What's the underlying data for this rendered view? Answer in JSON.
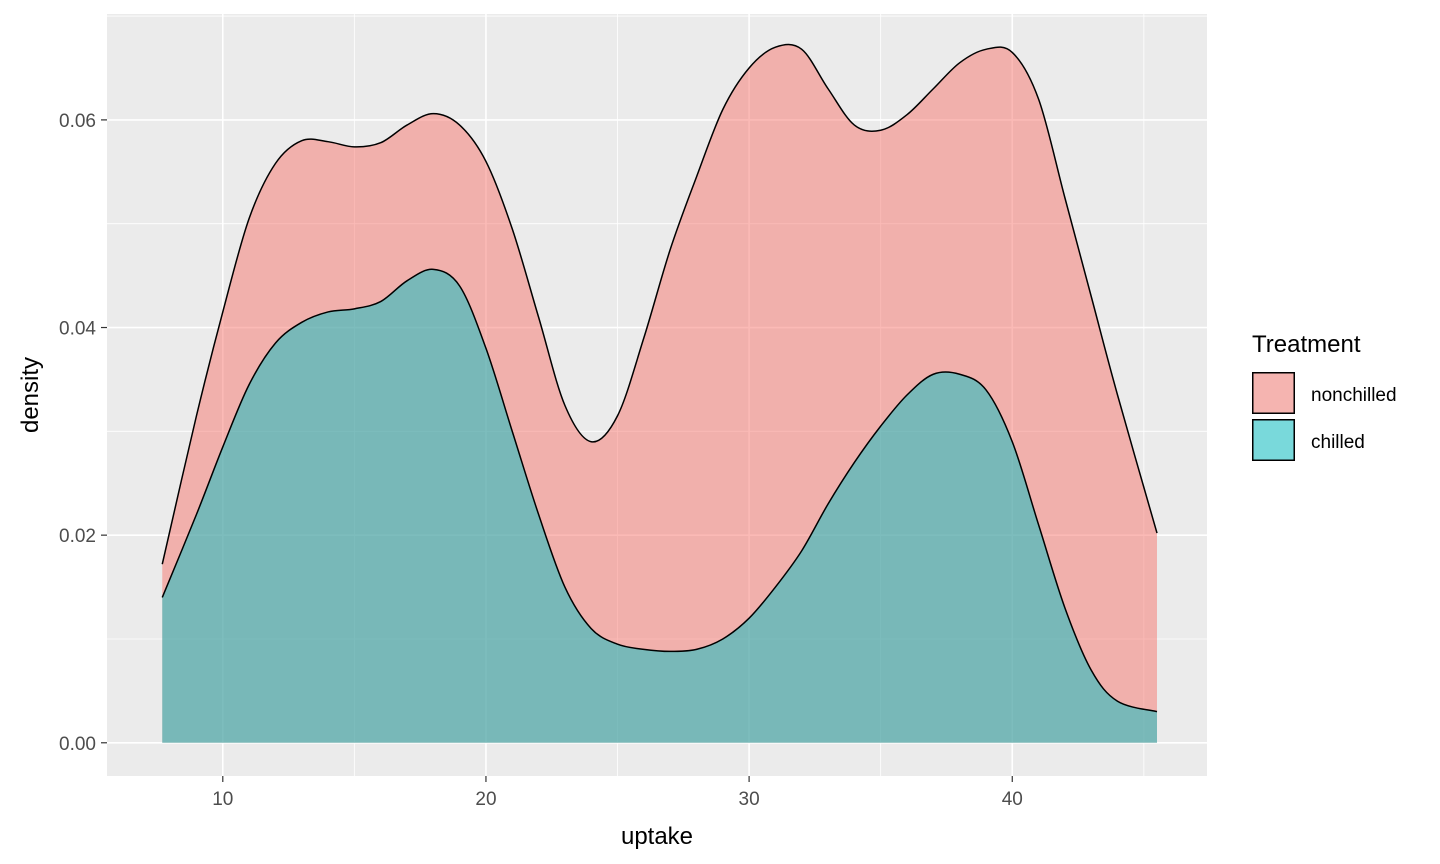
{
  "chart_data": {
    "type": "area",
    "subtype": "stacked-density",
    "title": "",
    "xlabel": "uptake",
    "ylabel": "density",
    "xlim": [
      5.6,
      47.4
    ],
    "ylim": [
      -0.0032,
      0.0702
    ],
    "x_ticks": [
      10,
      20,
      30,
      40
    ],
    "y_ticks": [
      0.0,
      0.02,
      0.04,
      0.06
    ],
    "x_tick_labels": [
      "10",
      "20",
      "30",
      "40"
    ],
    "y_tick_labels": [
      "0.00",
      "0.02",
      "0.04",
      "0.06"
    ],
    "grid": true,
    "legend": {
      "title": "Treatment",
      "position": "right"
    },
    "series": [
      {
        "name": "nonchilled",
        "color": "#F8766D",
        "x": [
          7.7,
          9.0,
          10.0,
          11.0,
          12.0,
          13.0,
          14.0,
          15.0,
          16.0,
          17.0,
          18.0,
          19.0,
          20.0,
          21.0,
          22.0,
          23.0,
          24.0,
          25.0,
          26.0,
          27.0,
          28.0,
          29.0,
          30.0,
          31.0,
          32.0,
          33.0,
          34.0,
          35.0,
          36.0,
          37.0,
          38.0,
          39.0,
          40.0,
          41.0,
          42.0,
          43.0,
          44.0,
          45.5
        ],
        "y": [
          0.0172,
          0.0315,
          0.0415,
          0.0505,
          0.0558,
          0.058,
          0.0579,
          0.0574,
          0.0578,
          0.0595,
          0.0606,
          0.0595,
          0.056,
          0.0495,
          0.041,
          0.0325,
          0.029,
          0.0315,
          0.039,
          0.0475,
          0.0545,
          0.061,
          0.065,
          0.067,
          0.0668,
          0.063,
          0.0595,
          0.059,
          0.0605,
          0.063,
          0.0655,
          0.0668,
          0.0665,
          0.062,
          0.0525,
          0.043,
          0.0335,
          0.0202
        ]
      },
      {
        "name": "chilled",
        "color": "#00BFC4",
        "x": [
          7.7,
          9.0,
          10.0,
          11.0,
          12.0,
          13.0,
          14.0,
          15.0,
          16.0,
          17.0,
          18.0,
          19.0,
          20.0,
          21.0,
          22.0,
          23.0,
          24.0,
          25.0,
          26.0,
          27.0,
          28.0,
          29.0,
          30.0,
          31.0,
          32.0,
          33.0,
          34.0,
          35.0,
          36.0,
          37.0,
          38.0,
          39.0,
          40.0,
          41.0,
          42.0,
          43.0,
          44.0,
          45.5
        ],
        "y": [
          0.014,
          0.022,
          0.0285,
          0.0345,
          0.0385,
          0.0405,
          0.0415,
          0.0418,
          0.0425,
          0.0445,
          0.0456,
          0.044,
          0.038,
          0.03,
          0.022,
          0.015,
          0.011,
          0.0095,
          0.009,
          0.0088,
          0.009,
          0.01,
          0.012,
          0.015,
          0.0185,
          0.023,
          0.027,
          0.0305,
          0.0335,
          0.0355,
          0.0355,
          0.034,
          0.029,
          0.021,
          0.013,
          0.007,
          0.004,
          0.003
        ]
      }
    ]
  }
}
